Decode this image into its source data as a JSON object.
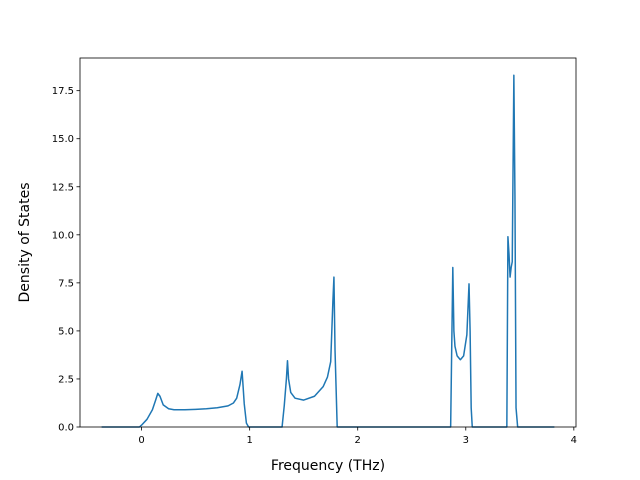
{
  "chart_data": {
    "type": "line",
    "title": "",
    "xlabel": "Frequency (THz)",
    "ylabel": "Density of States",
    "xlim": [
      -0.57,
      4.02
    ],
    "ylim": [
      0.0,
      19.2
    ],
    "xticks": [
      0,
      1,
      2,
      3,
      4
    ],
    "xtick_labels": [
      "0",
      "1",
      "2",
      "3",
      "4"
    ],
    "yticks": [
      0.0,
      2.5,
      5.0,
      7.5,
      10.0,
      12.5,
      15.0,
      17.5
    ],
    "ytick_labels": [
      "0.0",
      "2.5",
      "5.0",
      "7.5",
      "10.0",
      "12.5",
      "15.0",
      "17.5"
    ],
    "grid": false,
    "legend": false,
    "series": [
      {
        "color": "#1f77b4",
        "x": [
          -0.37,
          -0.02,
          0.0,
          0.05,
          0.1,
          0.13,
          0.15,
          0.17,
          0.2,
          0.25,
          0.3,
          0.4,
          0.5,
          0.6,
          0.7,
          0.8,
          0.85,
          0.88,
          0.91,
          0.93,
          0.95,
          0.97,
          0.99,
          1.01,
          1.05,
          1.1,
          1.3,
          1.32,
          1.34,
          1.35,
          1.36,
          1.38,
          1.42,
          1.5,
          1.6,
          1.68,
          1.72,
          1.75,
          1.77,
          1.78,
          1.79,
          1.81,
          2.0,
          2.5,
          2.86,
          2.88,
          2.89,
          2.9,
          2.92,
          2.95,
          2.98,
          3.01,
          3.03,
          3.04,
          3.05,
          3.06,
          3.08,
          3.3,
          3.38,
          3.39,
          3.4,
          3.41,
          3.42,
          3.43,
          3.445,
          3.455,
          3.465,
          3.48,
          3.6,
          3.82
        ],
        "y": [
          0.0,
          0.0,
          0.1,
          0.4,
          0.9,
          1.4,
          1.75,
          1.6,
          1.15,
          0.95,
          0.9,
          0.9,
          0.92,
          0.95,
          1.0,
          1.1,
          1.25,
          1.5,
          2.2,
          2.9,
          1.2,
          0.2,
          0.0,
          0.0,
          0.0,
          0.0,
          0.0,
          1.1,
          2.5,
          3.45,
          2.5,
          1.8,
          1.5,
          1.4,
          1.6,
          2.1,
          2.6,
          3.4,
          6.5,
          7.8,
          4.0,
          0.0,
          0.0,
          0.0,
          0.0,
          8.3,
          5.0,
          4.2,
          3.7,
          3.5,
          3.7,
          4.8,
          7.45,
          5.0,
          1.0,
          0.0,
          0.0,
          0.0,
          0.0,
          9.9,
          9.0,
          7.8,
          8.3,
          8.6,
          18.3,
          12.0,
          1.0,
          0.0,
          0.0,
          0.0
        ]
      }
    ]
  }
}
